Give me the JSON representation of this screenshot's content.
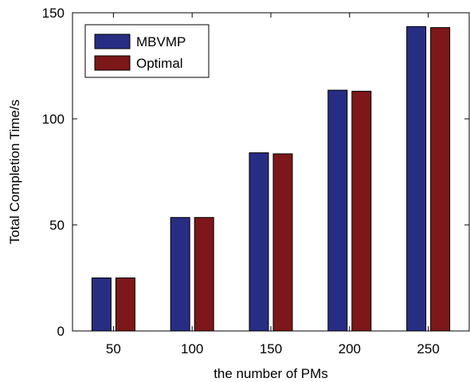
{
  "chart_data": {
    "type": "bar",
    "categories": [
      "50",
      "100",
      "150",
      "200",
      "250"
    ],
    "series": [
      {
        "name": "MBVMP",
        "values": [
          25,
          53.5,
          84,
          113.5,
          143.5
        ],
        "color": "#272d83"
      },
      {
        "name": "Optimal",
        "values": [
          25,
          53.5,
          83.5,
          113,
          143
        ],
        "color": "#7d1719"
      }
    ],
    "title": "",
    "xlabel": "the number of PMs",
    "ylabel": "Total Completion Time/s",
    "ylim": [
      0,
      150
    ],
    "yticks": [
      "0",
      "50",
      "100",
      "150"
    ],
    "grid": false,
    "legend": "top-left"
  }
}
